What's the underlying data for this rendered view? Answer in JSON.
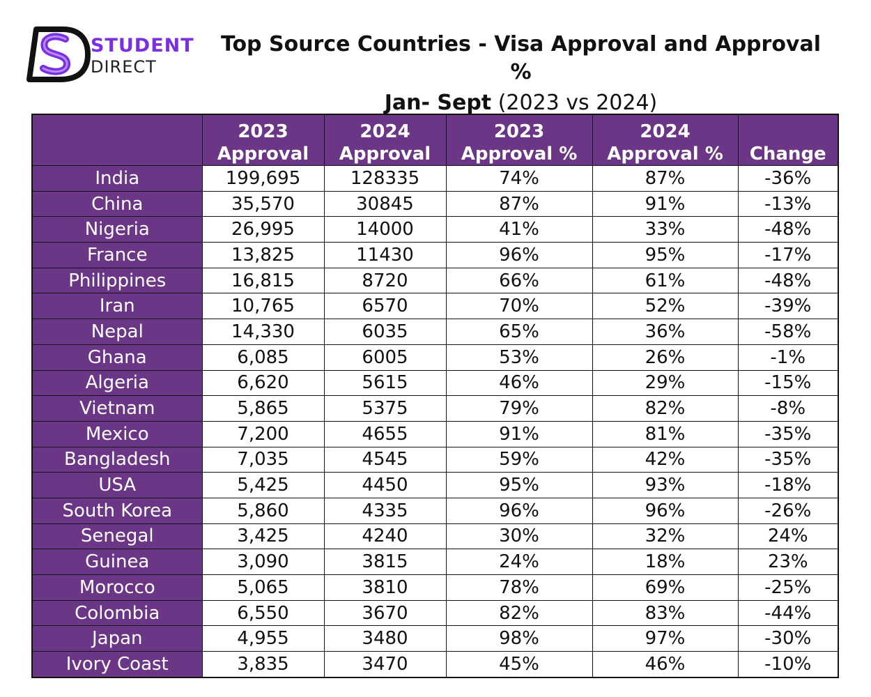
{
  "logo": {
    "line1": "STUDENT",
    "line2": "DIRECT",
    "accent": "#7a2fe0"
  },
  "title": {
    "line1": "Top Source Countries - Visa Approval and Approval %",
    "line2_bold": "Jan- Sept",
    "line2_rest": " (2023 vs 2024)"
  },
  "colors": {
    "header_bg": "#6b3685",
    "header_text": "#ffffff"
  },
  "table": {
    "headers": [
      [
        "",
        ""
      ],
      [
        "2023",
        "Approval"
      ],
      [
        "2024",
        "Approval"
      ],
      [
        "2023",
        "Approval %"
      ],
      [
        "2024",
        "Approval %"
      ],
      [
        "",
        "Change"
      ]
    ],
    "rows": [
      [
        "India",
        "199,695",
        "128335",
        "74%",
        "87%",
        "-36%"
      ],
      [
        "China",
        "35,570",
        "30845",
        "87%",
        "91%",
        "-13%"
      ],
      [
        "Nigeria",
        "26,995",
        "14000",
        "41%",
        "33%",
        "-48%"
      ],
      [
        "France",
        "13,825",
        "11430",
        "96%",
        "95%",
        "-17%"
      ],
      [
        "Philippines",
        "16,815",
        "8720",
        "66%",
        "61%",
        "-48%"
      ],
      [
        "Iran",
        "10,765",
        "6570",
        "70%",
        "52%",
        "-39%"
      ],
      [
        "Nepal",
        "14,330",
        "6035",
        "65%",
        "36%",
        "-58%"
      ],
      [
        "Ghana",
        "6,085",
        "6005",
        "53%",
        "26%",
        "-1%"
      ],
      [
        "Algeria",
        "6,620",
        "5615",
        "46%",
        "29%",
        "-15%"
      ],
      [
        "Vietnam",
        "5,865",
        "5375",
        "79%",
        "82%",
        "-8%"
      ],
      [
        "Mexico",
        "7,200",
        "4655",
        "91%",
        "81%",
        "-35%"
      ],
      [
        "Bangladesh",
        "7,035",
        "4545",
        "59%",
        "42%",
        "-35%"
      ],
      [
        "USA",
        "5,425",
        "4450",
        "95%",
        "93%",
        "-18%"
      ],
      [
        "South Korea",
        "5,860",
        "4335",
        "96%",
        "96%",
        "-26%"
      ],
      [
        "Senegal",
        "3,425",
        "4240",
        "30%",
        "32%",
        "24%"
      ],
      [
        "Guinea",
        "3,090",
        "3815",
        "24%",
        "18%",
        "23%"
      ],
      [
        "Morocco",
        "5,065",
        "3810",
        "78%",
        "69%",
        "-25%"
      ],
      [
        "Colombia",
        "6,550",
        "3670",
        "82%",
        "83%",
        "-44%"
      ],
      [
        "Japan",
        "4,955",
        "3480",
        "98%",
        "97%",
        "-30%"
      ],
      [
        "Ivory Coast",
        "3,835",
        "3470",
        "45%",
        "46%",
        "-10%"
      ]
    ]
  }
}
